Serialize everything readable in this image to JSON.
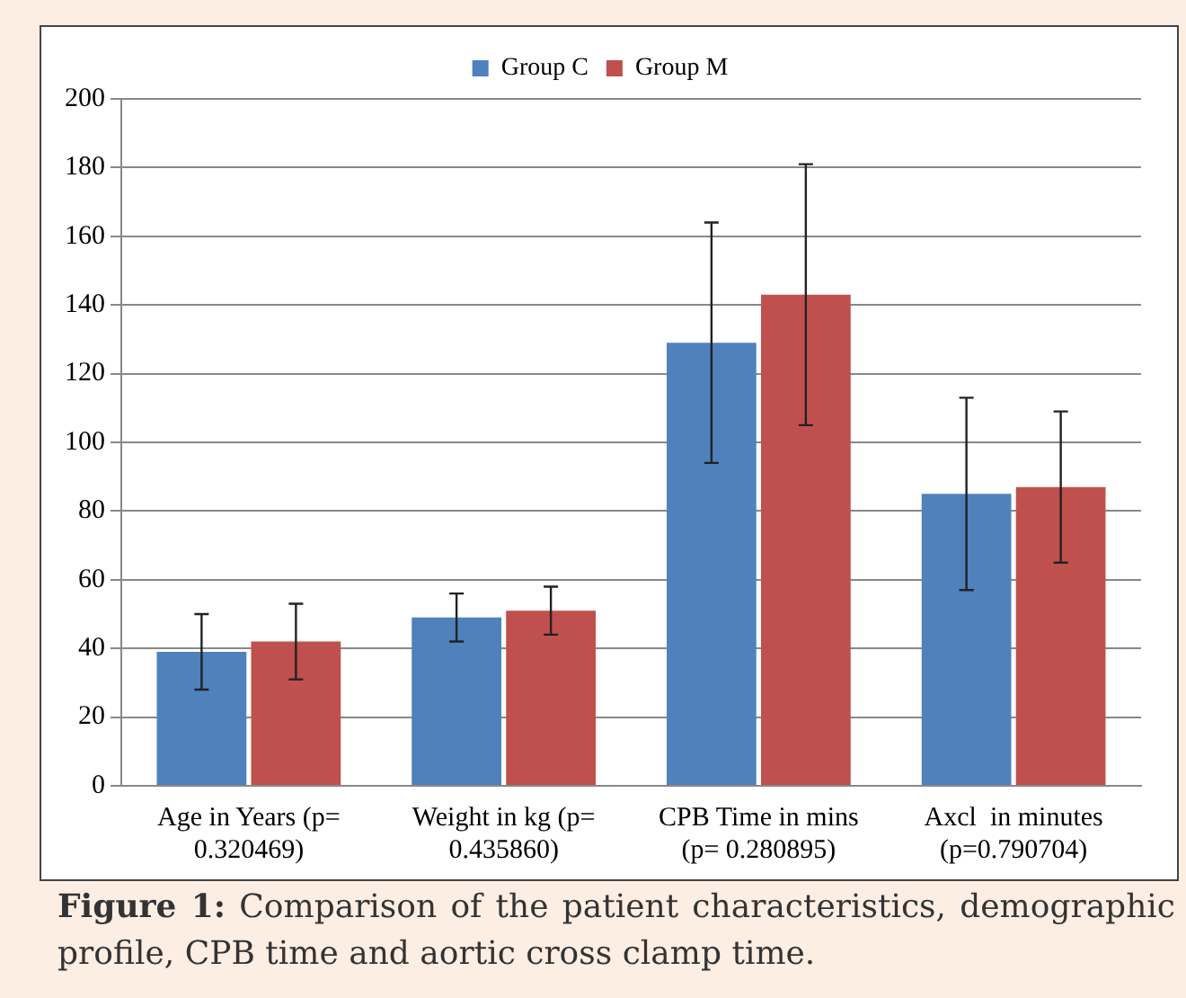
{
  "chart_data": {
    "type": "bar",
    "categories": [
      "Age in Years (p= 0.320469)",
      "Weight in kg (p= 0.435860)",
      "CPB Time in mins (p= 0.280895)",
      "Axcl  in minutes (p=0.790704)"
    ],
    "series": [
      {
        "name": "Group C",
        "color": "#4f81bd",
        "values": [
          39,
          49,
          129,
          85
        ],
        "errors": [
          11,
          7,
          35,
          28
        ]
      },
      {
        "name": "Group M",
        "color": "#c0504d",
        "values": [
          42,
          51,
          143,
          87
        ],
        "errors": [
          11,
          7,
          38,
          22
        ]
      }
    ],
    "ylim": [
      0,
      200
    ],
    "yticks": [
      0,
      20,
      40,
      60,
      80,
      100,
      120,
      140,
      160,
      180,
      200
    ],
    "grid": "y",
    "legend": "top",
    "annotations": [
      "Figure 1: Comparison of the patient characteristics, demographic profile, CPB time and aortic cross clamp time."
    ]
  }
}
